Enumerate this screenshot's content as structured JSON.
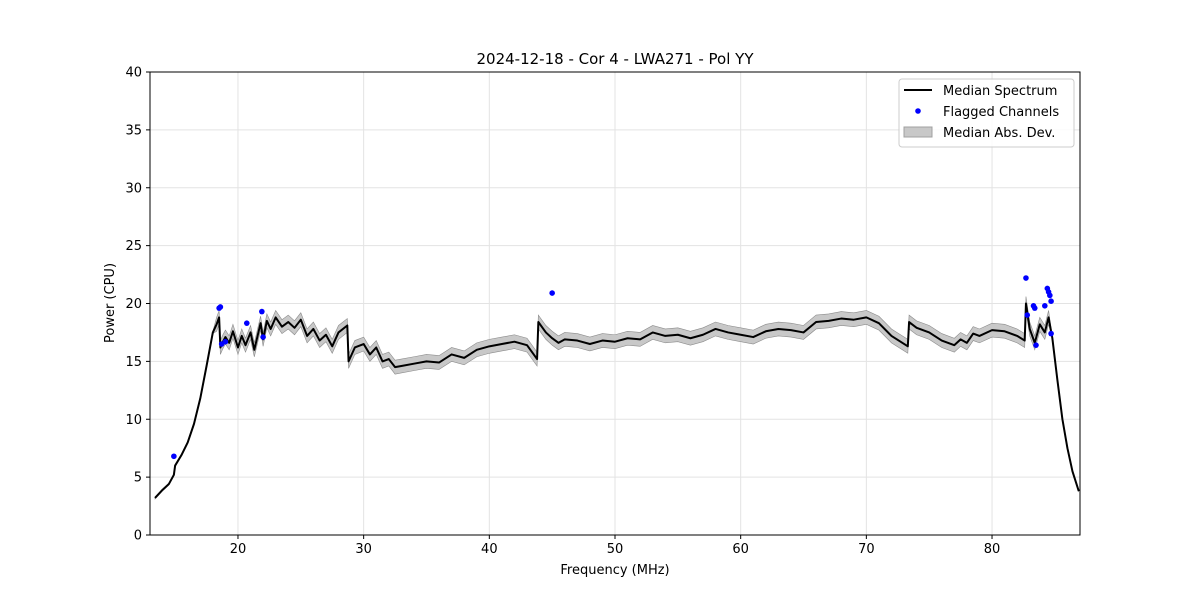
{
  "chart_data": {
    "type": "line",
    "title": "2024-12-18 - Cor 4 - LWA271 - Pol YY",
    "xlabel": "Frequency (MHz)",
    "ylabel": "Power (CPU)",
    "xlim": [
      13,
      87
    ],
    "ylim": [
      0,
      40
    ],
    "xticks": [
      20,
      30,
      40,
      50,
      60,
      70,
      80
    ],
    "yticks": [
      0,
      5,
      10,
      15,
      20,
      25,
      30,
      35,
      40
    ],
    "grid": true,
    "legend_position": "top-right",
    "colors": {
      "line": "#000000",
      "flagged": "#0000ff",
      "band": "#b0b0b0"
    },
    "legend": [
      {
        "label": "Median Spectrum",
        "kind": "line"
      },
      {
        "label": "Flagged Channels",
        "kind": "dot"
      },
      {
        "label": "Median Abs. Dev.",
        "kind": "patch"
      }
    ],
    "series": [
      {
        "name": "Median Spectrum",
        "x": [
          13.4,
          14.0,
          14.5,
          14.9,
          15.0,
          15.5,
          16.0,
          16.5,
          17.0,
          17.5,
          18.0,
          18.3,
          18.5,
          18.6,
          18.8,
          19.0,
          19.3,
          19.6,
          20.0,
          20.3,
          20.6,
          21.0,
          21.3,
          21.8,
          22.0,
          22.3,
          22.6,
          23.0,
          23.5,
          24.0,
          24.5,
          25.0,
          25.5,
          26.0,
          26.5,
          27.0,
          27.5,
          28.0,
          28.7,
          28.8,
          29.3,
          30.0,
          30.5,
          31.0,
          31.5,
          32.0,
          32.5,
          33.0,
          34.0,
          35.0,
          36.0,
          37.0,
          38.0,
          39.0,
          40.0,
          41.0,
          42.0,
          43.0,
          43.8,
          43.9,
          44.5,
          45.0,
          45.5,
          46.0,
          47.0,
          48.0,
          49.0,
          50.0,
          51.0,
          52.0,
          53.0,
          54.0,
          55.0,
          56.0,
          57.0,
          58.0,
          59.0,
          60.0,
          61.0,
          62.0,
          63.0,
          64.0,
          65.0,
          66.0,
          67.0,
          68.0,
          69.0,
          70.0,
          71.0,
          72.0,
          73.3,
          73.4,
          74.0,
          75.0,
          76.0,
          77.0,
          77.5,
          78.0,
          78.5,
          79.0,
          80.0,
          81.0,
          82.0,
          82.6,
          82.7,
          83.0,
          83.4,
          83.8,
          84.2,
          84.5,
          84.8,
          85.2,
          85.6,
          86.0,
          86.4,
          86.9
        ],
        "y": [
          3.2,
          3.9,
          4.4,
          5.2,
          6.0,
          6.9,
          8.0,
          9.6,
          11.8,
          14.6,
          17.5,
          18.2,
          18.8,
          16.2,
          16.7,
          17.1,
          16.6,
          17.6,
          16.2,
          17.2,
          16.4,
          17.5,
          16.0,
          18.3,
          16.9,
          18.5,
          17.8,
          18.8,
          18.0,
          18.4,
          17.9,
          18.6,
          17.2,
          17.8,
          16.8,
          17.3,
          16.3,
          17.5,
          18.1,
          15.0,
          16.2,
          16.5,
          15.6,
          16.2,
          15.0,
          15.2,
          14.5,
          14.6,
          14.8,
          15.0,
          14.9,
          15.6,
          15.3,
          16.0,
          16.3,
          16.5,
          16.7,
          16.4,
          15.2,
          18.4,
          17.5,
          17.0,
          16.6,
          16.9,
          16.8,
          16.5,
          16.8,
          16.7,
          17.0,
          16.9,
          17.5,
          17.2,
          17.3,
          17.0,
          17.3,
          17.8,
          17.5,
          17.3,
          17.1,
          17.6,
          17.8,
          17.7,
          17.5,
          18.4,
          18.5,
          18.7,
          18.6,
          18.8,
          18.3,
          17.2,
          16.3,
          18.4,
          17.9,
          17.5,
          16.8,
          16.4,
          16.9,
          16.6,
          17.4,
          17.2,
          17.7,
          17.6,
          17.2,
          16.8,
          20.0,
          17.8,
          16.6,
          18.2,
          17.5,
          18.8,
          17.0,
          13.4,
          10.0,
          7.5,
          5.5,
          3.8
        ]
      }
    ],
    "band_spread": 0.6,
    "flagged_channels": {
      "x": [
        14.9,
        18.5,
        18.6,
        18.7,
        19.0,
        20.7,
        21.9,
        22.0,
        45.0,
        82.7,
        82.8,
        83.3,
        83.4,
        83.5,
        84.2,
        84.4,
        84.5,
        84.6,
        84.7,
        84.7
      ],
      "y": [
        6.8,
        19.6,
        19.7,
        16.5,
        16.7,
        18.3,
        19.3,
        17.1,
        20.9,
        22.2,
        19.0,
        19.8,
        19.6,
        16.4,
        19.8,
        21.3,
        21.0,
        20.7,
        20.2,
        17.4
      ]
    }
  }
}
